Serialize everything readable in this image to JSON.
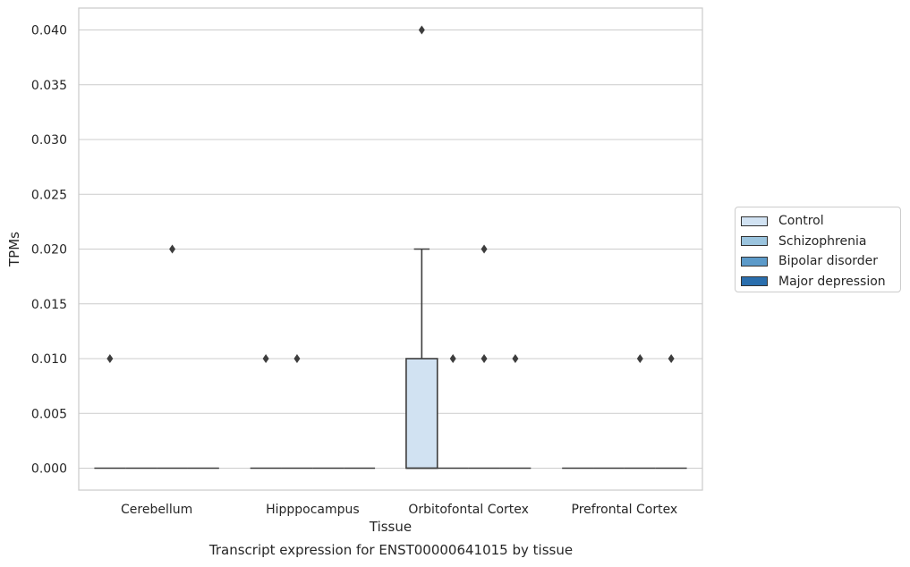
{
  "chart_data": {
    "type": "box",
    "title": "",
    "caption": "Transcript expression for ENST00000641015 by tissue",
    "xlabel": "Tissue",
    "ylabel": "TPMs",
    "ylim": [
      -0.002,
      0.042
    ],
    "yticks": [
      "0.000",
      "0.005",
      "0.010",
      "0.015",
      "0.020",
      "0.025",
      "0.030",
      "0.035",
      "0.040"
    ],
    "ytick_values": [
      0,
      0.005,
      0.01,
      0.015,
      0.02,
      0.025,
      0.03,
      0.035,
      0.04
    ],
    "grid": true,
    "legend_position": "center-right",
    "categories": [
      "Cerebellum",
      "Hipppocampus",
      "Orbitofontal Cortex",
      "Prefrontal Cortex"
    ],
    "series": [
      {
        "name": "Control",
        "color": "#d1e2f2",
        "boxes": [
          {
            "q1": 0,
            "median": 0,
            "q3": 0,
            "whisker_low": 0,
            "whisker_high": 0,
            "outliers": [
              0.01
            ]
          },
          {
            "q1": 0,
            "median": 0,
            "q3": 0,
            "whisker_low": 0,
            "whisker_high": 0,
            "outliers": [
              0.01
            ]
          },
          {
            "q1": 0,
            "median": 0,
            "q3": 0.01,
            "whisker_low": 0,
            "whisker_high": 0.02,
            "outliers": [
              0.04
            ]
          },
          {
            "q1": 0,
            "median": 0,
            "q3": 0,
            "whisker_low": 0,
            "whisker_high": 0,
            "outliers": []
          }
        ]
      },
      {
        "name": "Schizophrenia",
        "color": "#9bc4de",
        "boxes": [
          {
            "q1": 0,
            "median": 0,
            "q3": 0,
            "whisker_low": 0,
            "whisker_high": 0,
            "outliers": []
          },
          {
            "q1": 0,
            "median": 0,
            "q3": 0,
            "whisker_low": 0,
            "whisker_high": 0,
            "outliers": [
              0.01
            ]
          },
          {
            "q1": 0,
            "median": 0,
            "q3": 0,
            "whisker_low": 0,
            "whisker_high": 0,
            "outliers": [
              0.01
            ]
          },
          {
            "q1": 0,
            "median": 0,
            "q3": 0,
            "whisker_low": 0,
            "whisker_high": 0,
            "outliers": []
          }
        ]
      },
      {
        "name": "Bipolar disorder",
        "color": "#5c9ac9",
        "boxes": [
          {
            "q1": 0,
            "median": 0,
            "q3": 0,
            "whisker_low": 0,
            "whisker_high": 0,
            "outliers": [
              0.02
            ]
          },
          {
            "q1": 0,
            "median": 0,
            "q3": 0,
            "whisker_low": 0,
            "whisker_high": 0,
            "outliers": []
          },
          {
            "q1": 0,
            "median": 0,
            "q3": 0,
            "whisker_low": 0,
            "whisker_high": 0,
            "outliers": [
              0.01,
              0.02
            ]
          },
          {
            "q1": 0,
            "median": 0,
            "q3": 0,
            "whisker_low": 0,
            "whisker_high": 0,
            "outliers": [
              0.01
            ]
          }
        ]
      },
      {
        "name": "Major depression",
        "color": "#2a6ead",
        "boxes": [
          {
            "q1": 0,
            "median": 0,
            "q3": 0,
            "whisker_low": 0,
            "whisker_high": 0,
            "outliers": []
          },
          {
            "q1": 0,
            "median": 0,
            "q3": 0,
            "whisker_low": 0,
            "whisker_high": 0,
            "outliers": []
          },
          {
            "q1": 0,
            "median": 0,
            "q3": 0,
            "whisker_low": 0,
            "whisker_high": 0,
            "outliers": [
              0.01
            ]
          },
          {
            "q1": 0,
            "median": 0,
            "q3": 0,
            "whisker_low": 0,
            "whisker_high": 0,
            "outliers": [
              0.01
            ]
          }
        ]
      }
    ]
  }
}
